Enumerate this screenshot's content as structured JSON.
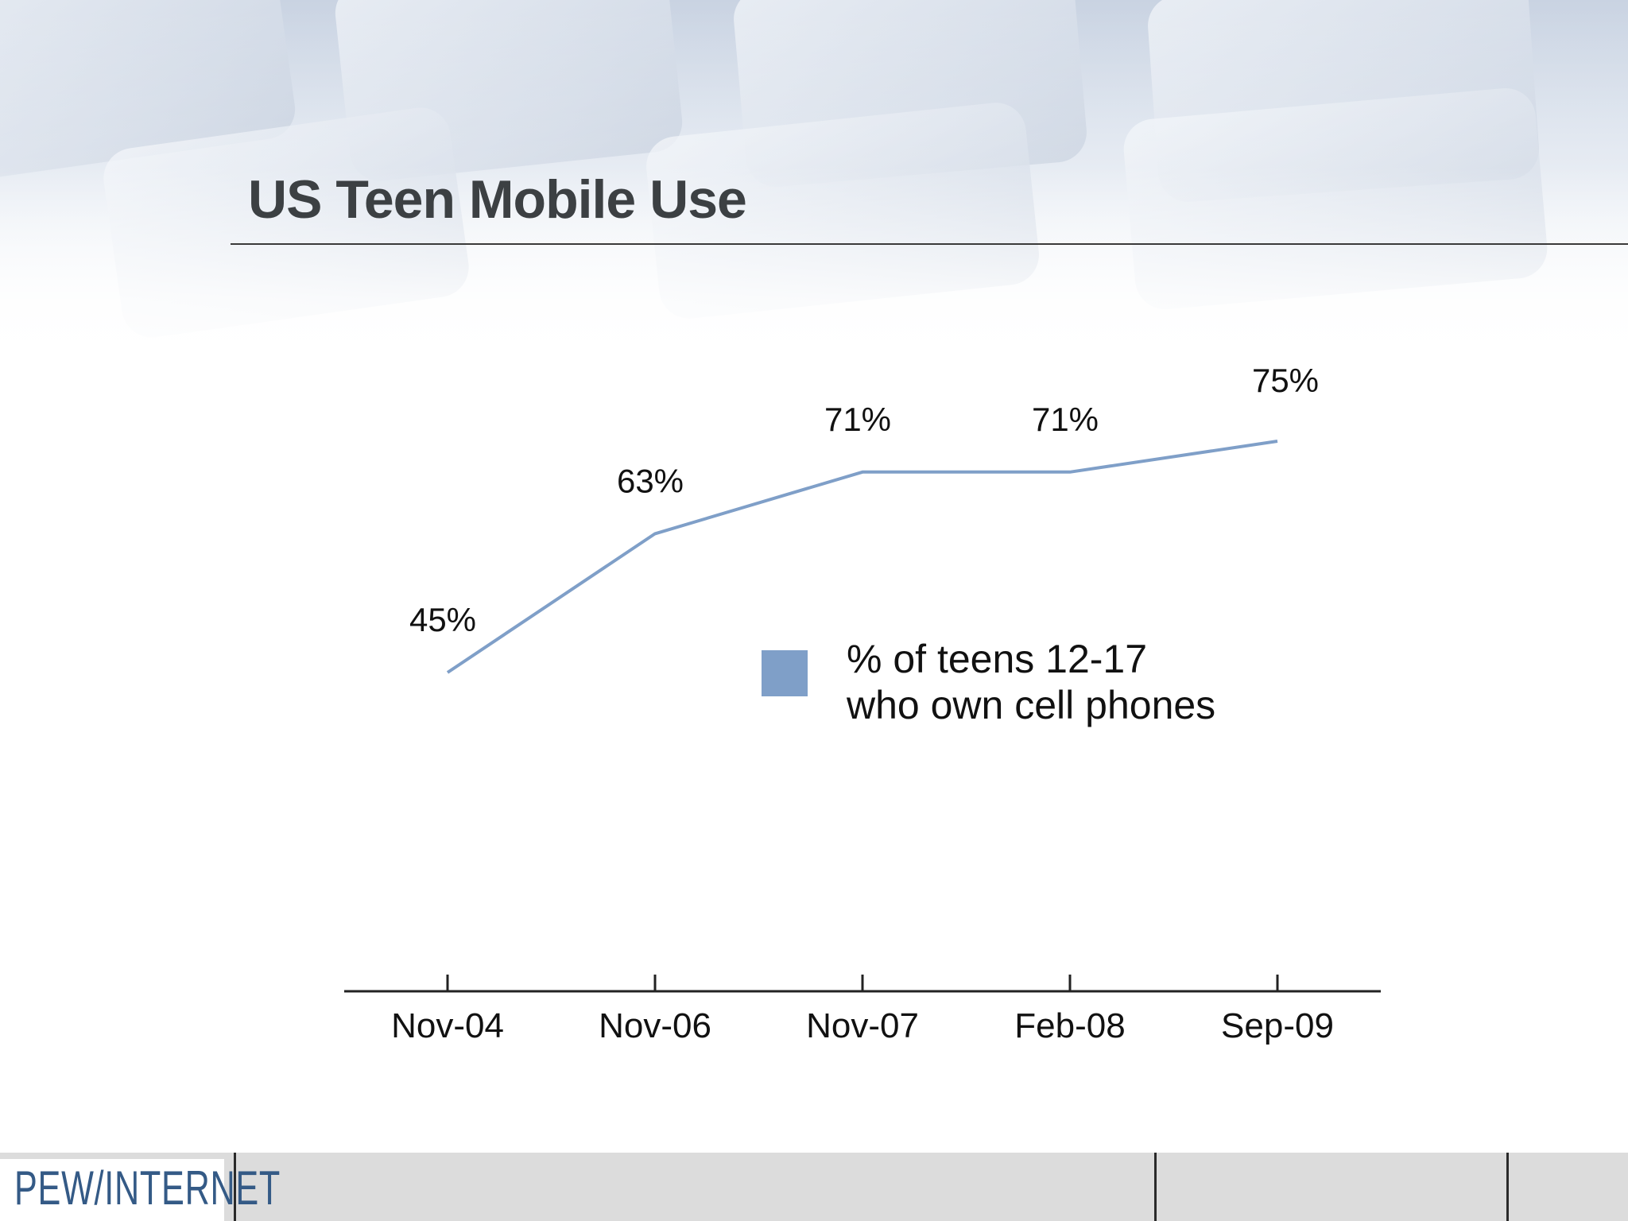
{
  "slide": {
    "title": "US Teen Mobile Use",
    "logo_text": "PEW/INTERNET"
  },
  "colors": {
    "series": "#7f9fc8",
    "legend_swatch": "#7f9fc8",
    "title_text": "#3c4043"
  },
  "chart_data": {
    "type": "line",
    "title": "",
    "xlabel": "",
    "ylabel": "",
    "categories": [
      "Nov-04",
      "Nov-06",
      "Nov-07",
      "Feb-08",
      "Sep-09"
    ],
    "series": [
      {
        "name": "% of teens 12-17 who own cell phones",
        "values": [
          45,
          63,
          71,
          71,
          75
        ],
        "labels": [
          "45%",
          "63%",
          "71%",
          "71%",
          "75%"
        ]
      }
    ],
    "legend": {
      "line1": "% of teens 12-17",
      "line2": "who own cell phones",
      "placement": "inside-center-right"
    },
    "grid": false
  }
}
